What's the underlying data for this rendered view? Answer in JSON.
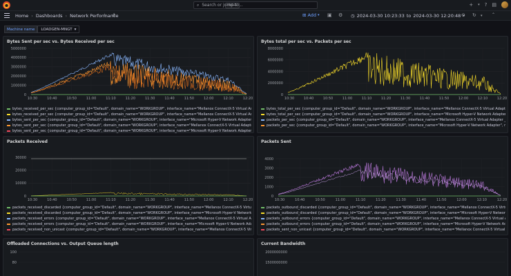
{
  "topbar": {
    "search_placeholder": "Search or jump to...",
    "search_shortcut": "ctrl+k"
  },
  "navbar": {
    "breadcrumbs": [
      "Home",
      "Dashboards",
      "Network Performance"
    ],
    "add_label": "Add",
    "time_from": "2024-03-30 10:23:33",
    "time_to_word": "to",
    "time_to": "2024-03-30 12:20:48"
  },
  "variable": {
    "label": "Machine name",
    "value": "LOADGEN-MNGT"
  },
  "colors": {
    "green": "#73bf69",
    "yellow": "#fade2a",
    "blue": "#8ab8ff",
    "orange": "#ff9830",
    "red": "#f2495c",
    "purple": "#b877d9"
  },
  "x_ticks": [
    "10:30",
    "10:40",
    "10:50",
    "11:00",
    "11:10",
    "11:20",
    "11:30",
    "11:40",
    "11:50",
    "12:00",
    "12:10",
    "12:20"
  ],
  "panels": {
    "bytes": {
      "title": "Bytes Sent per sec vs. Bytes Received per sec",
      "y_ticks": [
        "5000000",
        "4000000",
        "3000000",
        "2000000",
        "1000000",
        "0"
      ],
      "legend": [
        {
          "label": "bytes_received_per_sec {computer_group_id=\"Default\", domain_name=\"WORKGROUP\", interface_name=\"Mellanox ConnectX-5 Virtual Adapter _39\", machine_instance_",
          "color": "#73bf69"
        },
        {
          "label": "bytes_received_per_sec {computer_group_id=\"Default\", domain_name=\"WORKGROUP\", interface_name=\"Mellanox ConnectX-5 Virtual Adapter _39\", machine_instance",
          "color": "#fade2a"
        },
        {
          "label": "bytes_sent_per_sec {computer_group_id=\"Default\", domain_name=\"WORKGROUP\", interface_name=\"Microsoft Hyper-V Network Adapter\", machine_instance_id=",
          "color": "#8ab8ff"
        },
        {
          "label": "bytes_sent_per_sec {computer_group_id=\"Default\", domain_name=\"WORKGROUP\", interface_name=\"Mellanox ConnectX-5 Virtual Adapter _39\", machine_instance",
          "color": "#ff9830"
        },
        {
          "label": "bytes_sent_per_sec {computer_group_id=\"Default\", domain_name=\"WORKGROUP\", interface_name=\"Microsoft Hyper-V Network Adapter\", machine_instance_id=",
          "color": "#f2495c"
        }
      ]
    },
    "bytes_total": {
      "title": "Bytes total per sec vs. Packets per sec",
      "y_ticks": [
        "8000000",
        "6000000",
        "4000000",
        "2000000",
        "0"
      ],
      "legend": [
        {
          "label": "bytes_total_per_sec {computer_group_id=\"Default\", domain_name=\"WORKGROUP\", interface_name=\"Mellanox ConnectX-5 Virtual Adapter _39\", machine_instance_id=\"",
          "color": "#73bf69"
        },
        {
          "label": "bytes_total_per_sec {computer_group_id=\"Default\", domain_name=\"WORKGROUP\", interface_name=\"Microsoft Hyper-V Network Adapter\", machine_instance_id=\"",
          "color": "#fade2a"
        },
        {
          "label": "packets_per_sec {computer_group_id=\"Default\", domain_name=\"WORKGROUP\", interface_name=\"Mellanox ConnectX-5 Virtual Adapter _39\", machine_instance_id=\"",
          "color": "#8ab8ff"
        },
        {
          "label": "packets_per_sec {computer_group_id=\"Default\", domain_name=\"WORKGROUP\", interface_name=\"Microsoft Hyper-V Network Adapter\", machine_instance_id=\"",
          "color": "#ff9830"
        }
      ]
    },
    "packets_received": {
      "title": "Packets Received",
      "y_ticks": [
        "30000",
        "20000",
        "10000",
        "0"
      ],
      "legend": [
        {
          "label": "packets_received_discarded {computer_group_id=\"Default\", domain_name=\"WORKGROUP\", interface_name=\"Mellanox ConnectX-5 Virtual Adapter _39\", machine_ins",
          "color": "#73bf69"
        },
        {
          "label": "packets_received_discarded {computer_group_id=\"Default\", domain_name=\"WORKGROUP\", interface_name=\"Microsoft Hyper-V Network Adapter\", machine_instanc",
          "color": "#fade2a"
        },
        {
          "label": "packets_received_errors {computer_group_id=\"Default\", domain_name=\"WORKGROUP\", interface_name=\"Mellanox ConnectX-5 Virtual Adapter _39\", machine_instanc",
          "color": "#8ab8ff"
        },
        {
          "label": "packets_received_errors {computer_group_id=\"Default\", domain_name=\"WORKGROUP\", interface_name=\"Microsoft Hyper-V Network Adapter\", machine_instance_id",
          "color": "#ff9830"
        },
        {
          "label": "packets_received_non_unicast {computer_group_id=\"Default\", domain_name=\"WORKGROUP\", interface_name=\"Mellanox ConnectX-5 Virtual Adapter _39\", machine_ins",
          "color": "#f2495c"
        }
      ]
    },
    "packets_sent": {
      "title": "Packets Sent",
      "y_ticks": [
        "4000",
        "3000",
        "2000",
        "1000",
        "0"
      ],
      "legend": [
        {
          "label": "packets_outbound_discarded {computer_group_id=\"Default\", domain_name=\"WORKGROUP\", interface_name=\"Mellanox ConnectX-5 Virtual Adapter _39\", machine_ins",
          "color": "#73bf69"
        },
        {
          "label": "packets_outbound_discarded {computer_group_id=\"Default\", domain_name=\"WORKGROUP\", interface_name=\"Microsoft Hyper-V Network Adapter\", machine_instanc",
          "color": "#fade2a"
        },
        {
          "label": "packets_outbound_errors {computer_group_id=\"Default\", domain_name=\"WORKGROUP\", interface_name=\"Mellanox ConnectX-5 Virtual Adapter _39\", machine_instanc",
          "color": "#8ab8ff"
        },
        {
          "label": "packets_outbound_errors {computer_group_id=\"Default\", domain_name=\"WORKGROUP\", interface_name=\"Microsoft Hyper-V Network Adapter\", machine_instance_id",
          "color": "#ff9830"
        },
        {
          "label": "packets_sent_non_unicast {computer_group_id=\"Default\", domain_name=\"WORKGROUP\", interface_name=\"Mellanox ConnectX-5 Virtual Adapter _39\", machine_ins",
          "color": "#f2495c"
        }
      ]
    },
    "offloaded": {
      "title": "Offloaded Connections vs. Output Queue length",
      "y_ticks": [
        "100",
        "80"
      ]
    },
    "bandwidth": {
      "title": "Current Bandwidth",
      "y_ticks": [
        "2000000000",
        "1500000000"
      ]
    }
  }
}
